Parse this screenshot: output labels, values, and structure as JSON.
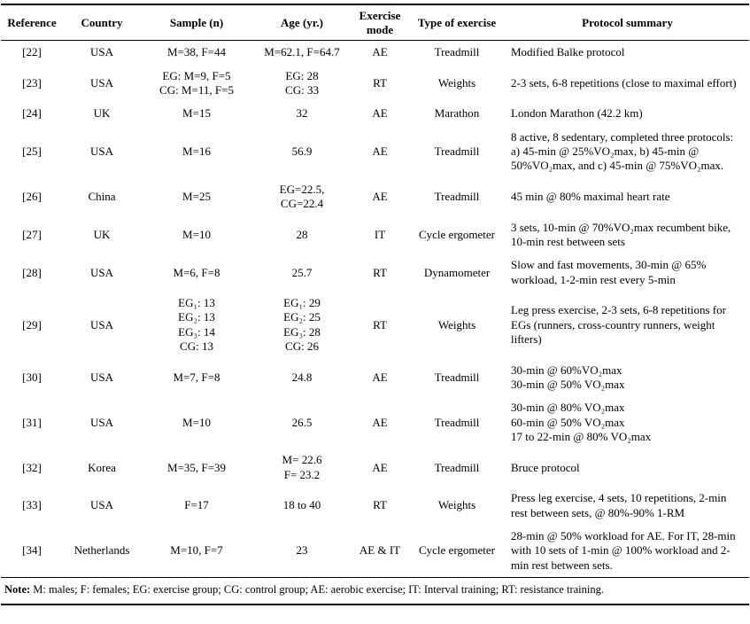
{
  "table": {
    "headers": [
      "Reference",
      "Country",
      "Sample (n)",
      "Age (yr.)",
      "Exercise mode",
      "Type of exercise",
      "Protocol summary"
    ],
    "rows": [
      {
        "reference": "[22]",
        "country": "USA",
        "sample": "M=38, F=44",
        "age": "M=62.1, F=64.7",
        "mode": "AE",
        "type": "Treadmill",
        "protocol": "Modified Balke protocol"
      },
      {
        "reference": "[23]",
        "country": "USA",
        "sample": "EG: M=9, F=5\nCG: M=11, F=5",
        "age": "EG: 28\nCG: 33",
        "mode": "RT",
        "type": "Weights",
        "protocol": "2-3 sets, 6-8 repetitions (close to maximal effort)"
      },
      {
        "reference": "[24]",
        "country": "UK",
        "sample": "M=15",
        "age": "32",
        "mode": "AE",
        "type": "Marathon",
        "protocol": "London Marathon (42.2 km)"
      },
      {
        "reference": "[25]",
        "country": "USA",
        "sample": "M=16",
        "age": "56.9",
        "mode": "AE",
        "type": "Treadmill",
        "protocol": "8 active, 8 sedentary, completed three protocols: a) 45-min @ 25%VO₂max, b) 45-min @ 50%VO₂max, and c) 45-min @ 75%VO₂max."
      },
      {
        "reference": "[26]",
        "country": "China",
        "sample": "M=25",
        "age": "EG=22.5,\nCG=22.4",
        "mode": "AE",
        "type": "Treadmill",
        "protocol": "45 min @ 80% maximal heart rate"
      },
      {
        "reference": "[27]",
        "country": "UK",
        "sample": "M=10",
        "age": "28",
        "mode": "IT",
        "type": "Cycle ergometer",
        "protocol": "3 sets, 10-min @ 70%VO₂max recumbent bike, 10-min rest between sets"
      },
      {
        "reference": "[28]",
        "country": "USA",
        "sample": "M=6, F=8",
        "age": "25.7",
        "mode": "RT",
        "type": "Dynamometer",
        "protocol": "Slow and fast movements, 30-min @ 65% workload, 1-2-min rest every 5-min"
      },
      {
        "reference": "[29]",
        "country": "USA",
        "sample": "EG₁: 13\nEG₂: 13\nEG₃: 14\nCG: 13",
        "age": "EG₁: 29\nEG₂: 25\nEG₃: 28\nCG: 26",
        "mode": "RT",
        "type": "Weights",
        "protocol": "Leg press exercise, 2-3 sets, 6-8 repetitions for EGs (runners, cross-country runners, weight lifters)"
      },
      {
        "reference": "[30]",
        "country": "USA",
        "sample": "M=7, F=8",
        "age": "24.8",
        "mode": "AE",
        "type": "Treadmill",
        "protocol": "30-min @ 60%VO₂max\n30-min @ 50% VO₂max"
      },
      {
        "reference": "[31]",
        "country": "USA",
        "sample": "M=10",
        "age": "26.5",
        "mode": "AE",
        "type": "Treadmill",
        "protocol": "30-min @ 80% VO₂max\n60-min @ 50% VO₂max\n17 to 22-min @ 80% VO₂max"
      },
      {
        "reference": "[32]",
        "country": "Korea",
        "sample": "M=35, F=39",
        "age": "M= 22.6\nF= 23.2",
        "mode": "AE",
        "type": "Treadmill",
        "protocol": "Bruce protocol"
      },
      {
        "reference": "[33]",
        "country": "USA",
        "sample": "F=17",
        "age": "18 to 40",
        "mode": "RT",
        "type": "Weights",
        "protocol": "Press leg exercise, 4 sets, 10 repetitions, 2-min rest between sets, @ 80%-90% 1-RM"
      },
      {
        "reference": "[34]",
        "country": "Netherlands",
        "sample": "M=10, F=7",
        "age": "23",
        "mode": "AE & IT",
        "type": "Cycle ergometer",
        "protocol": "28-min @ 50% workload for AE. For IT, 28-min with 10 sets of 1-min @ 100% workload and 2-min rest between sets."
      }
    ]
  },
  "note": {
    "label": "Note:",
    "text": " M: males; F: females; EG: exercise group; CG: control group; AE: aerobic exercise; IT: Interval training; RT: resistance training."
  }
}
